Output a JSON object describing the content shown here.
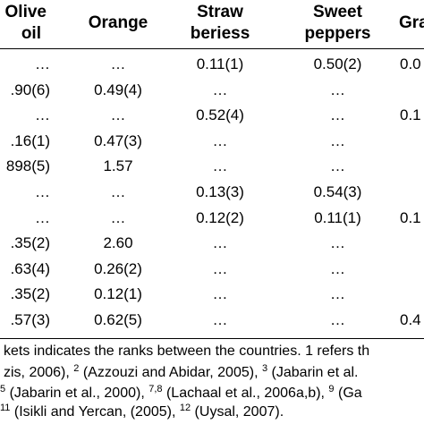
{
  "table": {
    "headers": {
      "olive": [
        "Olive",
        "oil"
      ],
      "orange": [
        "Orange"
      ],
      "straw": [
        "Straw",
        "beriess"
      ],
      "sweet": [
        "Sweet",
        "peppers"
      ],
      "grape": [
        "Gra"
      ]
    },
    "rows": [
      {
        "olive": "…",
        "orange": "…",
        "straw": "0.11(1)",
        "sweet": "0.50(2)",
        "grape": "0.0"
      },
      {
        "olive": ".90(6)",
        "orange": "0.49(4)",
        "straw": "…",
        "sweet": "…",
        "grape": ""
      },
      {
        "olive": "…",
        "orange": "…",
        "straw": "0.52(4)",
        "sweet": "…",
        "grape": "0.1"
      },
      {
        "olive": ".16(1)",
        "orange": "0.47(3)",
        "straw": "…",
        "sweet": "…",
        "grape": ""
      },
      {
        "olive": "898(5)",
        "orange": "1.57",
        "straw": "…",
        "sweet": "…",
        "grape": ""
      },
      {
        "olive": "…",
        "orange": "…",
        "straw": "0.13(3)",
        "sweet": "0.54(3)",
        "grape": ""
      },
      {
        "olive": "…",
        "orange": "…",
        "straw": "0.12(2)",
        "sweet": "0.11(1)",
        "grape": "0.1"
      },
      {
        "olive": ".35(2)",
        "orange": "2.60",
        "straw": "…",
        "sweet": "…",
        "grape": ""
      },
      {
        "olive": ".63(4)",
        "orange": "0.26(2)",
        "straw": "…",
        "sweet": "…",
        "grape": ""
      },
      {
        "olive": ".35(2)",
        "orange": "0.12(1)",
        "straw": "…",
        "sweet": "…",
        "grape": ""
      },
      {
        "olive": ".57(3)",
        "orange": "0.62(5)",
        "straw": "…",
        "sweet": "…",
        "grape": "0.4"
      }
    ]
  },
  "footnotes": {
    "line1": "kets indicates the ranks between the countries. 1 refers th",
    "line2": {
      "a": "zis, 2006), ",
      "s1": "2",
      "b": " (Azzouzi and Abidar, 2005), ",
      "s2": "3",
      "c": " (Jabarin et al."
    },
    "line3": {
      "s0": "5",
      "a": " (Jabarin et al., 2000), ",
      "s1": "7,8",
      "b": " (Lachaal et al., 2006a,b), ",
      "s2": "9",
      "c": " (Ga"
    },
    "line4": {
      "s0": "11",
      "a": " (Isikli and Yercan, (2005), ",
      "s1": "12",
      "b": " (Uysal, 2007)."
    }
  }
}
